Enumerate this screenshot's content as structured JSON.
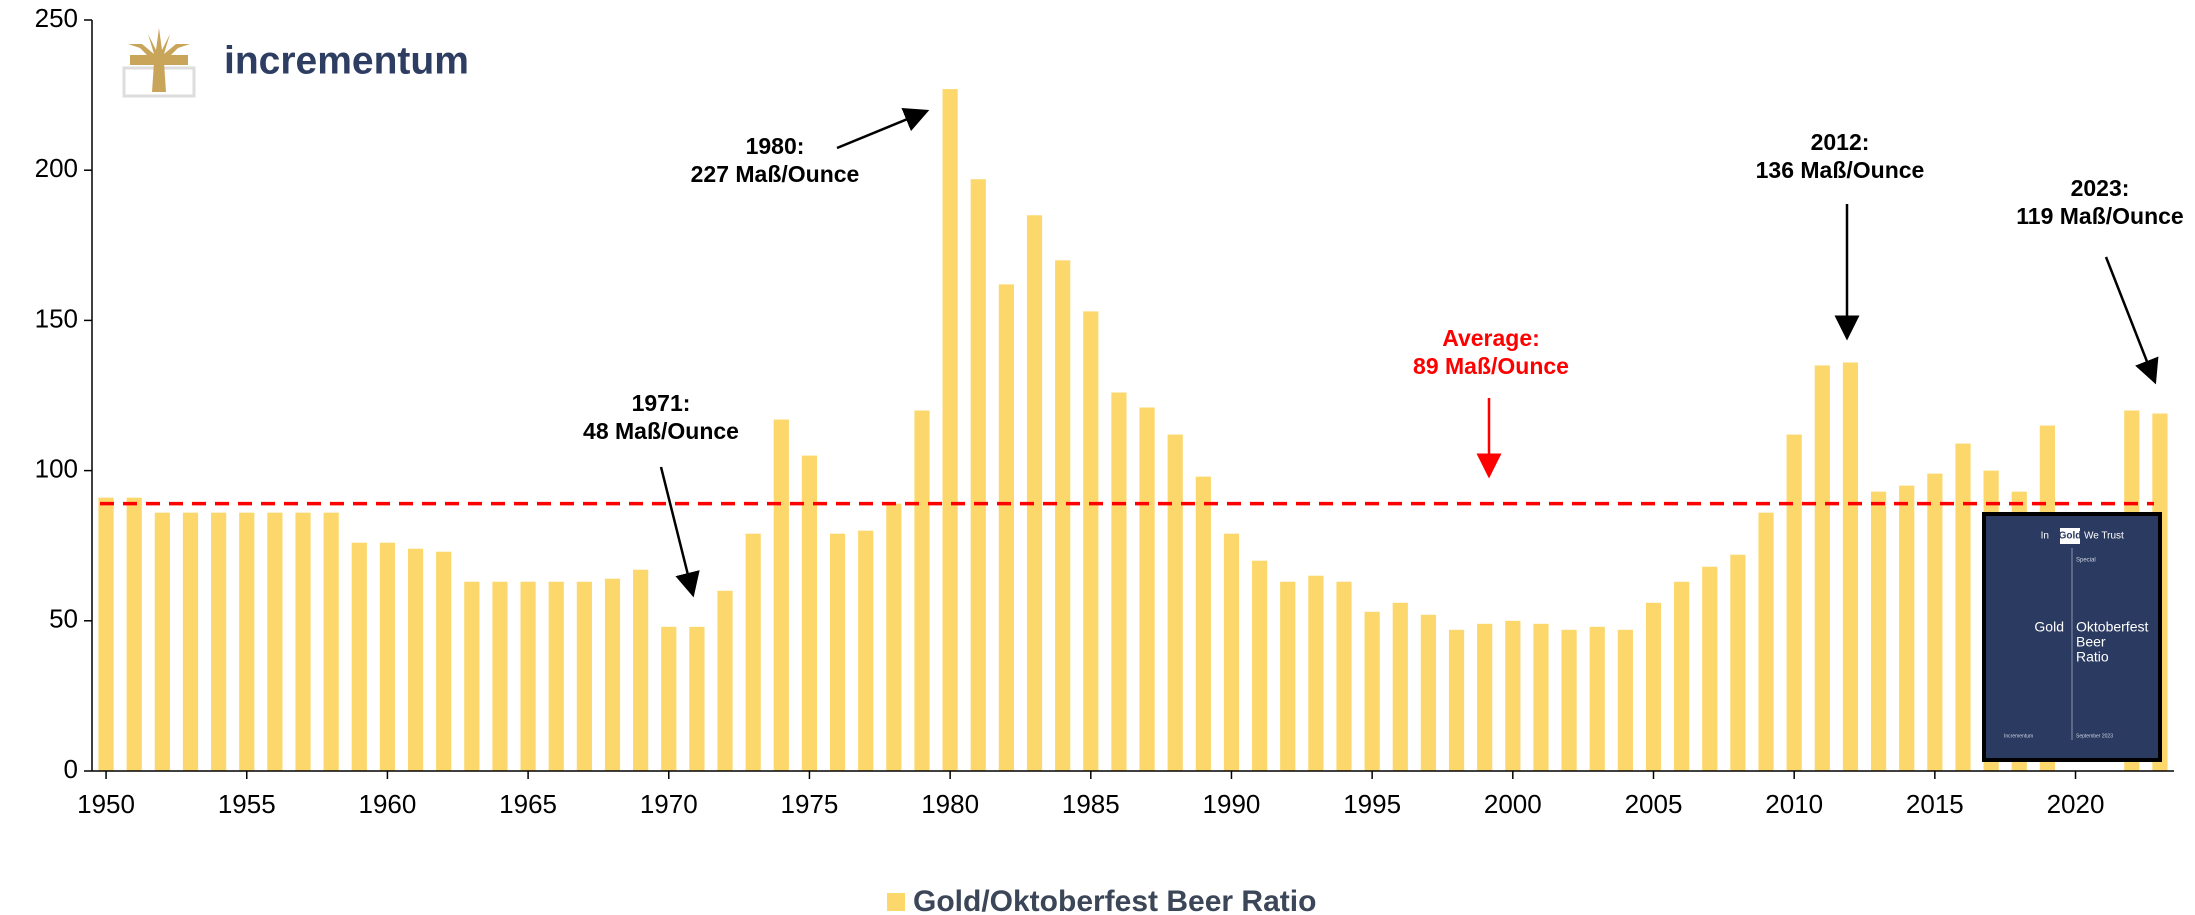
{
  "logo": {
    "text": "incrementum"
  },
  "chart_data": {
    "type": "bar",
    "x": [
      1950,
      1951,
      1952,
      1953,
      1954,
      1955,
      1956,
      1957,
      1958,
      1959,
      1960,
      1961,
      1962,
      1963,
      1964,
      1965,
      1966,
      1967,
      1968,
      1969,
      1970,
      1971,
      1972,
      1973,
      1974,
      1975,
      1976,
      1977,
      1978,
      1979,
      1980,
      1981,
      1982,
      1983,
      1984,
      1985,
      1986,
      1987,
      1988,
      1989,
      1990,
      1991,
      1992,
      1993,
      1994,
      1995,
      1996,
      1997,
      1998,
      1999,
      2000,
      2001,
      2002,
      2003,
      2004,
      2005,
      2006,
      2007,
      2008,
      2009,
      2010,
      2011,
      2012,
      2013,
      2014,
      2015,
      2016,
      2017,
      2018,
      2019,
      2020,
      2021,
      2022,
      2023
    ],
    "series": [
      {
        "name": "Gold/Oktoberfest Beer Ratio",
        "color": "#fcd86c",
        "values": [
          91,
          91,
          86,
          86,
          86,
          86,
          86,
          86,
          86,
          76,
          76,
          74,
          73,
          63,
          63,
          63,
          63,
          63,
          64,
          67,
          48,
          48,
          60,
          79,
          117,
          105,
          79,
          80,
          89,
          120,
          227,
          197,
          162,
          185,
          170,
          153,
          126,
          121,
          112,
          98,
          79,
          70,
          63,
          65,
          63,
          53,
          56,
          52,
          47,
          49,
          50,
          49,
          47,
          48,
          47,
          56,
          63,
          68,
          72,
          86,
          112,
          135,
          136,
          93,
          95,
          99,
          109,
          100,
          93,
          115,
          null,
          null,
          120,
          119
        ]
      }
    ],
    "xlim": [
      1949.5,
      2023.5
    ],
    "xticks": [
      1950,
      1955,
      1960,
      1965,
      1970,
      1975,
      1980,
      1985,
      1990,
      1995,
      2000,
      2005,
      2010,
      2015,
      2020
    ],
    "ylim": [
      0,
      250
    ],
    "yticks": [
      0,
      50,
      100,
      150,
      200,
      250
    ],
    "average": {
      "value": 89,
      "color": "#ff0000",
      "lines": [
        "Average:",
        "89 Maß/Ounce"
      ]
    },
    "annotations": [
      {
        "lines": [
          "1980:",
          "227 Maß/Ounce"
        ]
      },
      {
        "lines": [
          "1971:",
          "48 Maß/Ounce"
        ]
      },
      {
        "lines": [
          "2012:",
          "136 Maß/Ounce"
        ]
      },
      {
        "lines": [
          "2023:",
          "119 Maß/Ounce"
        ]
      }
    ],
    "legend": "bottom"
  },
  "cover": {
    "brand": [
      "In",
      "Gold",
      "We Trust"
    ],
    "tag": "Special",
    "left": "Gold",
    "right": [
      "Oktoberfest",
      "Beer",
      "Ratio"
    ],
    "footer_left": "Incrementum",
    "footer_right": "September 2023"
  }
}
